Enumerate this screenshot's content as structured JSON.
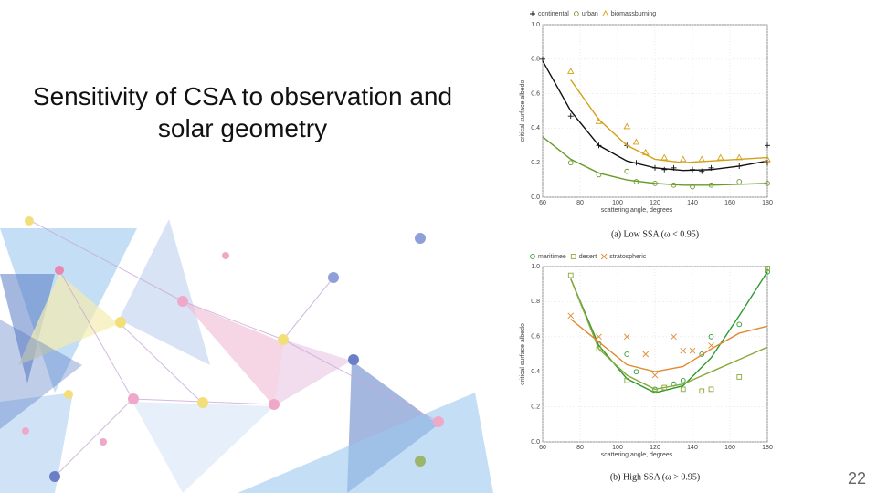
{
  "slide": {
    "title": "Sensitivity of CSA to observation and solar geometry",
    "page_number": "22"
  },
  "chart_data": [
    {
      "type": "line",
      "caption": "(a) Low SSA (ω < 0.95)",
      "x_label": "scattering angle, degrees",
      "y_label": "critical surface albedo",
      "xlim": [
        60,
        180
      ],
      "xticks": [
        60,
        80,
        100,
        120,
        140,
        160,
        180
      ],
      "ylim": [
        0,
        1
      ],
      "yticks": [
        {
          "value": 0,
          "label": "0.0"
        },
        {
          "value": 0.2,
          "label": "0.2"
        },
        {
          "value": 0.4,
          "label": "0.4"
        },
        {
          "value": 0.6,
          "label": "0.6"
        },
        {
          "value": 0.8,
          "label": "0.8"
        },
        {
          "value": 1,
          "label": "1.0"
        }
      ],
      "grid": true,
      "series": [
        {
          "name": "continental",
          "color": "#111111",
          "marker": "plus",
          "x": [
            60,
            75,
            90,
            105,
            120,
            135,
            150,
            165,
            180
          ],
          "values": [
            0.79,
            0.5,
            0.3,
            0.21,
            0.17,
            0.155,
            0.16,
            0.18,
            0.21
          ],
          "points_x": [
            60,
            75,
            90,
            105,
            110,
            120,
            125,
            130,
            140,
            145,
            150,
            165,
            180,
            180
          ],
          "points": [
            0.8,
            0.47,
            0.3,
            0.3,
            0.2,
            0.17,
            0.16,
            0.17,
            0.16,
            0.15,
            0.17,
            0.18,
            0.2,
            0.3
          ]
        },
        {
          "name": "urban",
          "color": "#6a9a2a",
          "marker": "circle",
          "x": [
            60,
            75,
            90,
            105,
            120,
            135,
            150,
            165,
            180
          ],
          "values": [
            0.35,
            0.22,
            0.14,
            0.1,
            0.08,
            0.07,
            0.07,
            0.075,
            0.08
          ],
          "points_x": [
            75,
            90,
            105,
            110,
            120,
            130,
            140,
            150,
            165,
            180
          ],
          "points": [
            0.2,
            0.13,
            0.15,
            0.09,
            0.08,
            0.07,
            0.06,
            0.07,
            0.09,
            0.08
          ]
        },
        {
          "name": "biomassburning",
          "color": "#d4a017",
          "marker": "triangle",
          "x": [
            75,
            90,
            105,
            120,
            135,
            150,
            165,
            180
          ],
          "values": [
            0.68,
            0.45,
            0.3,
            0.22,
            0.2,
            0.21,
            0.22,
            0.23
          ],
          "points_x": [
            75,
            90,
            105,
            110,
            115,
            125,
            135,
            145,
            155,
            165,
            180
          ],
          "points": [
            0.73,
            0.44,
            0.41,
            0.32,
            0.26,
            0.23,
            0.22,
            0.22,
            0.23,
            0.23,
            0.22
          ]
        }
      ]
    },
    {
      "type": "line",
      "caption": "(b) High SSA (ω > 0.95)",
      "x_label": "scattering angle, degrees",
      "y_label": "critical surface albedo",
      "xlim": [
        60,
        180
      ],
      "xticks": [
        60,
        80,
        100,
        120,
        140,
        160,
        180
      ],
      "ylim": [
        0,
        1
      ],
      "yticks": [
        {
          "value": 0,
          "label": "0.0"
        },
        {
          "value": 0.2,
          "label": "0.2"
        },
        {
          "value": 0.4,
          "label": "0.4"
        },
        {
          "value": 0.6,
          "label": "0.6"
        },
        {
          "value": 0.8,
          "label": "0.8"
        },
        {
          "value": 1,
          "label": "1.0"
        }
      ],
      "grid": true,
      "series": [
        {
          "name": "maritimee",
          "color": "#2e9a2e",
          "marker": "circle",
          "x": [
            75,
            90,
            105,
            120,
            135,
            150,
            165,
            180
          ],
          "values": [
            0.93,
            0.55,
            0.36,
            0.28,
            0.32,
            0.48,
            0.72,
            0.97
          ],
          "points_x": [
            90,
            105,
            110,
            120,
            130,
            135,
            145,
            150,
            165,
            180
          ],
          "points": [
            0.56,
            0.5,
            0.4,
            0.3,
            0.33,
            0.35,
            0.5,
            0.6,
            0.67,
            0.97
          ]
        },
        {
          "name": "desert",
          "color": "#8aa83a",
          "marker": "square",
          "x": [
            75,
            90,
            105,
            120,
            135,
            150,
            165,
            180
          ],
          "values": [
            0.93,
            0.53,
            0.38,
            0.3,
            0.33,
            0.4,
            0.47,
            0.54
          ],
          "points_x": [
            75,
            90,
            105,
            120,
            125,
            135,
            145,
            150,
            165,
            180
          ],
          "points": [
            0.95,
            0.53,
            0.35,
            0.29,
            0.31,
            0.3,
            0.29,
            0.3,
            0.37,
            0.99
          ]
        },
        {
          "name": "stratospheric",
          "color": "#e08a30",
          "marker": "cross",
          "x": [
            75,
            90,
            105,
            120,
            135,
            150,
            165,
            180
          ],
          "values": [
            0.7,
            0.57,
            0.44,
            0.4,
            0.43,
            0.53,
            0.62,
            0.66
          ],
          "points_x": [
            75,
            90,
            105,
            115,
            120,
            130,
            135,
            140,
            150
          ],
          "points": [
            0.72,
            0.6,
            0.6,
            0.5,
            0.38,
            0.6,
            0.52,
            0.52,
            0.55
          ]
        }
      ]
    }
  ]
}
